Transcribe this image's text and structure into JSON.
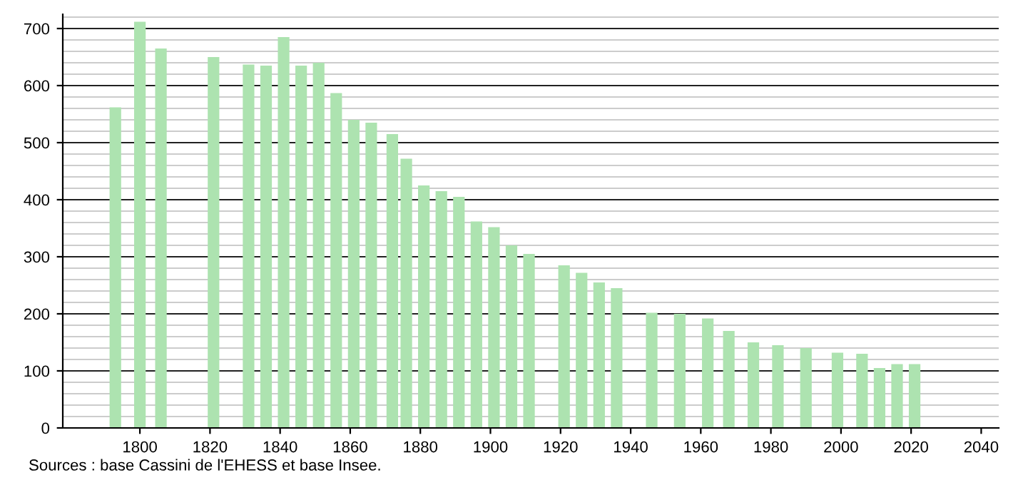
{
  "chart_data": {
    "type": "bar",
    "x": [
      1793,
      1800,
      1806,
      1821,
      1831,
      1836,
      1841,
      1846,
      1851,
      1856,
      1861,
      1866,
      1872,
      1876,
      1881,
      1886,
      1891,
      1896,
      1901,
      1906,
      1911,
      1921,
      1926,
      1931,
      1936,
      1946,
      1954,
      1962,
      1968,
      1975,
      1982,
      1990,
      1999,
      2006,
      2011,
      2016,
      2021
    ],
    "values": [
      562,
      712,
      665,
      650,
      637,
      635,
      685,
      635,
      640,
      587,
      540,
      535,
      515,
      472,
      425,
      415,
      405,
      362,
      352,
      320,
      305,
      285,
      272,
      255,
      245,
      202,
      200,
      192,
      170,
      150,
      145,
      140,
      132,
      130,
      105,
      112,
      112
    ],
    "color": "#ade3b0",
    "xlim": [
      1778,
      2045
    ],
    "xticks": [
      1800,
      1820,
      1840,
      1860,
      1880,
      1900,
      1920,
      1940,
      1960,
      1980,
      2000,
      2020,
      2040
    ],
    "ylim": [
      0,
      725
    ],
    "yticks": [
      0,
      100,
      200,
      300,
      400,
      500,
      600,
      700
    ],
    "grid": "y",
    "annotations": [
      "Sources : base Cassini de l'EHESS et base Insee."
    ]
  }
}
